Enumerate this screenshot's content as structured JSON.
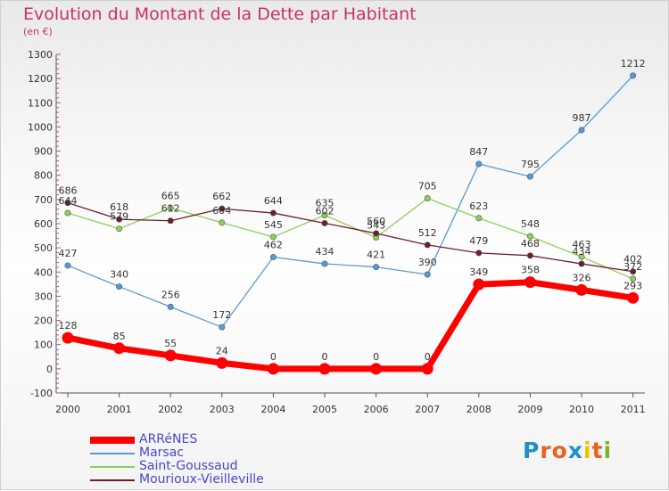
{
  "title": "Evolution du Montant de la Dette par Habitant",
  "subtitle": "(en €)",
  "logo": {
    "text": "Proxiti",
    "colors": [
      "#1e90c8",
      "#e8641e",
      "#e8641e",
      "#1e90c8",
      "#f0c000",
      "#e8641e",
      "#78b428"
    ]
  },
  "chart_data": {
    "type": "line",
    "title": "Evolution du Montant de la Dette par Habitant",
    "ylabel": "(en €)",
    "xlabel": "",
    "x": [
      "2000",
      "2001",
      "2002",
      "2003",
      "2004",
      "2005",
      "2006",
      "2007",
      "2008",
      "2009",
      "2010",
      "2011"
    ],
    "ylim": [
      -100,
      1300
    ],
    "yticks": [
      -100,
      0,
      100,
      200,
      300,
      400,
      500,
      600,
      700,
      800,
      900,
      1000,
      1100,
      1200,
      1300
    ],
    "grid": false,
    "legend_position": "bottom-left",
    "series": [
      {
        "name": "ARRéNES",
        "color": "#ff0000",
        "values": [
          128,
          85,
          55,
          24,
          0,
          0,
          0,
          0,
          349,
          358,
          326,
          293
        ]
      },
      {
        "name": "Marsac",
        "color": "#5a9ad2",
        "values": [
          427,
          340,
          256,
          172,
          462,
          434,
          421,
          390,
          847,
          795,
          987,
          1212
        ]
      },
      {
        "name": "Saint-Goussaud",
        "color": "#8cd05a",
        "values": [
          644,
          579,
          665,
          604,
          545,
          635,
          543,
          705,
          623,
          548,
          463,
          372
        ]
      },
      {
        "name": "Mourioux-Vieilleville",
        "color": "#6b1f2a",
        "values": [
          686,
          618,
          612,
          662,
          644,
          602,
          560,
          512,
          479,
          468,
          434,
          402
        ]
      }
    ]
  }
}
